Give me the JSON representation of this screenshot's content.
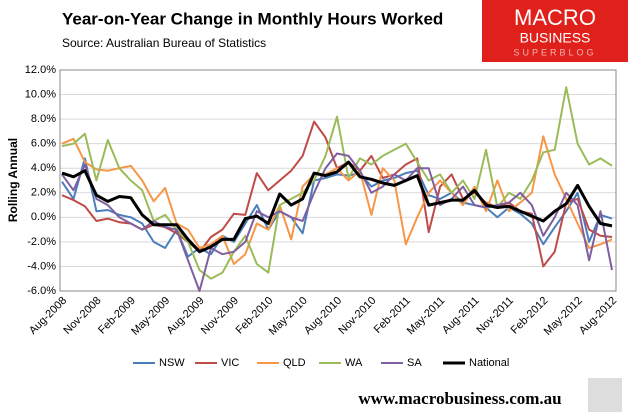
{
  "chart_data": {
    "type": "line",
    "title": "Year-on-Year  Change in Monthly Hours Worked",
    "subtitle": "Source: Australian Bureau of Statistics",
    "y_label": "Rolling Annual",
    "categories": [
      "Aug-2008",
      null,
      null,
      "Nov-2008",
      null,
      null,
      "Feb-2009",
      null,
      null,
      "May-2009",
      null,
      null,
      "Aug-2009",
      null,
      null,
      "Nov-2009",
      null,
      null,
      "Feb-2010",
      null,
      null,
      "May-2010",
      null,
      null,
      "Aug-2010",
      null,
      null,
      "Nov-2010",
      null,
      null,
      "Feb-2011",
      null,
      null,
      "May-2011",
      null,
      null,
      "Aug-2011",
      null,
      null,
      "Nov-2011",
      null,
      null,
      "Feb-2012",
      null,
      null,
      "May-2012",
      null,
      null,
      "Aug-2012"
    ],
    "series": [
      {
        "name": "NSW",
        "color": "#4a7ebb",
        "width": 2,
        "values": [
          2.9,
          1.5,
          4.8,
          0.5,
          0.6,
          0.2,
          0.0,
          -0.5,
          -2.0,
          -2.5,
          -1.0,
          -3.2,
          -2.5,
          -3.0,
          -1.5,
          -2.0,
          -0.5,
          1.0,
          -1.0,
          0.5,
          0.0,
          -1.3,
          3.0,
          3.2,
          3.5,
          3.4,
          3.6,
          2.5,
          3.0,
          3.2,
          3.6,
          3.8,
          1.8,
          1.5,
          2.0,
          1.2,
          1.0,
          0.8,
          0.0,
          0.8,
          0.3,
          -0.5,
          -2.2,
          -0.8,
          0.5,
          2.0,
          -2.0,
          0.2,
          -0.1
        ]
      },
      {
        "name": "VIC",
        "color": "#be4b48",
        "width": 2,
        "values": [
          1.8,
          1.4,
          0.9,
          -0.3,
          -0.1,
          -0.4,
          -0.5,
          -1.0,
          -0.6,
          -0.8,
          -1.3,
          -2.0,
          -2.8,
          -1.6,
          -1.0,
          0.3,
          0.2,
          3.6,
          2.2,
          3.0,
          3.8,
          5.0,
          7.8,
          6.5,
          4.0,
          4.5,
          3.8,
          5.0,
          3.2,
          3.5,
          4.3,
          4.8,
          -1.2,
          2.5,
          3.5,
          1.5,
          2.0,
          1.2,
          0.8,
          1.2,
          0.5,
          0.3,
          -4.0,
          -2.8,
          1.2,
          1.5,
          -1.0,
          -1.5,
          -1.6
        ]
      },
      {
        "name": "QLD",
        "color": "#f79646",
        "width": 2,
        "values": [
          6.0,
          6.4,
          4.5,
          3.9,
          3.8,
          4.0,
          4.2,
          3.0,
          1.3,
          2.4,
          -0.5,
          -1.0,
          -2.5,
          -2.2,
          -1.5,
          -3.8,
          -3.0,
          -0.5,
          -1.0,
          1.0,
          -1.8,
          2.5,
          3.5,
          3.5,
          4.0,
          3.0,
          3.8,
          0.2,
          4.0,
          3.0,
          -2.2,
          0.0,
          2.0,
          3.0,
          2.0,
          1.0,
          2.5,
          0.5,
          3.0,
          0.5,
          1.2,
          2.0,
          6.6,
          3.5,
          1.5,
          -0.5,
          -2.5,
          -2.2,
          -1.8
        ]
      },
      {
        "name": "WA",
        "color": "#9bbb59",
        "width": 2,
        "values": [
          5.8,
          6.0,
          6.8,
          3.0,
          6.3,
          4.0,
          3.0,
          2.2,
          -0.3,
          0.2,
          -1.0,
          -2.0,
          -4.3,
          -5.0,
          -4.5,
          -2.8,
          -1.5,
          -3.8,
          -4.5,
          1.0,
          1.5,
          2.0,
          3.0,
          5.0,
          8.2,
          3.2,
          4.8,
          4.3,
          5.0,
          5.5,
          6.0,
          4.5,
          3.0,
          3.5,
          2.0,
          3.0,
          1.5,
          5.5,
          0.8,
          2.0,
          1.5,
          3.0,
          5.3,
          5.5,
          10.6,
          6.0,
          4.3,
          4.8,
          4.2
        ]
      },
      {
        "name": "SA",
        "color": "#7f5f9f",
        "width": 2,
        "values": [
          3.5,
          2.2,
          4.3,
          1.5,
          1.0,
          0.0,
          -0.5,
          -1.0,
          -0.3,
          -0.8,
          -1.0,
          -3.5,
          -6.0,
          -2.5,
          -3.0,
          -2.8,
          -2.0,
          0.5,
          0.0,
          0.5,
          0.0,
          -0.3,
          2.0,
          4.0,
          5.2,
          5.0,
          3.8,
          2.0,
          2.5,
          3.5,
          3.0,
          4.0,
          4.0,
          1.0,
          1.5,
          2.5,
          1.0,
          0.8,
          1.0,
          1.2,
          2.0,
          1.0,
          -1.5,
          0.0,
          2.0,
          1.0,
          -3.5,
          0.5,
          -4.3
        ]
      },
      {
        "name": "National",
        "color": "#000000",
        "width": 3,
        "values": [
          3.6,
          3.3,
          3.8,
          1.8,
          1.3,
          1.7,
          1.6,
          0.2,
          -0.6,
          -0.6,
          -0.6,
          -1.8,
          -2.8,
          -2.4,
          -1.8,
          -1.8,
          -0.1,
          0.1,
          -0.5,
          1.9,
          1.0,
          1.5,
          3.6,
          3.4,
          3.7,
          4.5,
          3.3,
          3.1,
          2.8,
          2.6,
          3.0,
          3.4,
          1.0,
          1.2,
          1.4,
          1.4,
          2.2,
          1.0,
          0.8,
          0.9,
          0.5,
          0.1,
          -0.3,
          0.5,
          1.1,
          2.6,
          0.9,
          -0.5,
          -0.7
        ]
      }
    ],
    "ylim": [
      -6,
      12
    ],
    "yticks": [
      {
        "value": -6,
        "label": "-6.0%"
      },
      {
        "value": -4,
        "label": "-4.0%"
      },
      {
        "value": -2,
        "label": "-2.0%"
      },
      {
        "value": 0,
        "label": "0.0%"
      },
      {
        "value": 2,
        "label": "2.0%"
      },
      {
        "value": 4,
        "label": "4.0%"
      },
      {
        "value": 6,
        "label": "6.0%"
      },
      {
        "value": 8,
        "label": "8.0%"
      },
      {
        "value": 10,
        "label": "10.0%"
      },
      {
        "value": 12,
        "label": "12.0%"
      }
    ],
    "grid": true,
    "legend": "bottom"
  },
  "logo": {
    "line1": "MACRO",
    "line2": "BUSINESS",
    "line3": "SUPERBLOG"
  },
  "footer": "www.macrobusiness.com.au"
}
